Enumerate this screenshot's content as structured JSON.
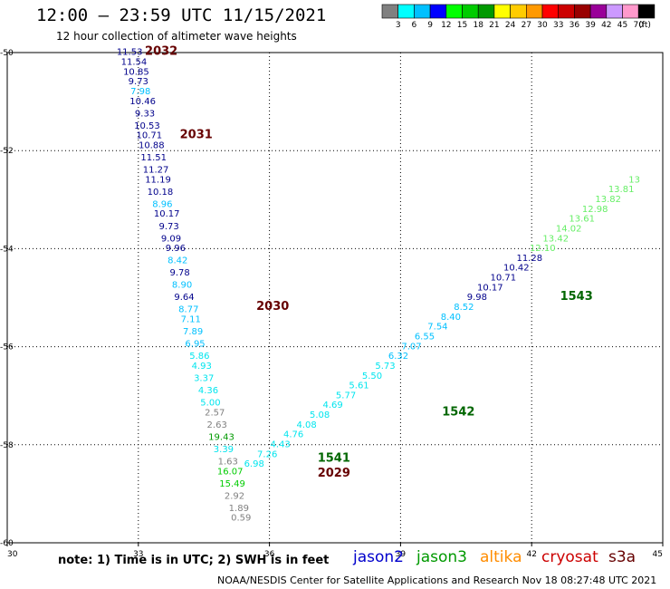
{
  "header": {
    "title": "12:00 – 23:59 UTC 11/15/2021",
    "subtitle": "12 hour collection of altimeter wave heights"
  },
  "footer": {
    "note": "note:  1) Time is in UTC; 2) SWH is in feet",
    "credit": "NOAA/NESDIS Center for Satellite Applications and Research     Nov 18 08:27:48 UTC 2021",
    "missions": [
      {
        "name": "jason2",
        "color": "#0000cc"
      },
      {
        "name": "jason3",
        "color": "#009900"
      },
      {
        "name": "altika",
        "color": "#ff8c00"
      },
      {
        "name": "cryosat",
        "color": "#cc0000"
      },
      {
        "name": "s3a",
        "color": "#660000"
      }
    ]
  },
  "legend": {
    "unit": "(ft)",
    "bins": [
      {
        "label": "3",
        "color": "#808080"
      },
      {
        "label": "6",
        "color": "#00ffff"
      },
      {
        "label": "9",
        "color": "#00c0ff"
      },
      {
        "label": "12",
        "color": "#0000ff"
      },
      {
        "label": "15",
        "color": "#00ff00"
      },
      {
        "label": "18",
        "color": "#00cc00"
      },
      {
        "label": "21",
        "color": "#009900"
      },
      {
        "label": "24",
        "color": "#ffff00"
      },
      {
        "label": "27",
        "color": "#ffcc00"
      },
      {
        "label": "30",
        "color": "#ff9900"
      },
      {
        "label": "33",
        "color": "#ff0000"
      },
      {
        "label": "36",
        "color": "#cc0000"
      },
      {
        "label": "39",
        "color": "#990000"
      },
      {
        "label": "42",
        "color": "#990099"
      },
      {
        "label": "45",
        "color": "#cc99ff"
      },
      {
        "label": "70",
        "color": "#ff99cc"
      },
      {
        "label": "",
        "color": "#000000"
      }
    ]
  },
  "chart_data": {
    "type": "scatter",
    "xlim": [
      30,
      45
    ],
    "ylim": [
      -60,
      -50
    ],
    "x_ticks": [
      "30",
      "33",
      "36",
      "39",
      "42",
      "45"
    ],
    "y_ticks": [
      "-50",
      "-52",
      "-54",
      "-56",
      "-58",
      "-60"
    ],
    "grid": true,
    "track_labels": [
      {
        "text": "2032",
        "x": 33.15,
        "y": -50.05,
        "color": "#660000"
      },
      {
        "text": "2031",
        "x": 33.95,
        "y": -51.75,
        "color": "#660000"
      },
      {
        "text": "2030",
        "x": 35.7,
        "y": -55.25,
        "color": "#660000"
      },
      {
        "text": "2029",
        "x": 37.1,
        "y": -58.65,
        "color": "#660000"
      },
      {
        "text": "1541",
        "x": 37.1,
        "y": -58.35,
        "color": "#006600"
      },
      {
        "text": "1542",
        "x": 39.95,
        "y": -57.4,
        "color": "#006600"
      },
      {
        "text": "1543",
        "x": 42.65,
        "y": -55.05,
        "color": "#006600"
      }
    ],
    "points": [
      {
        "x": 32.8,
        "y": -50.05,
        "v": "11.53",
        "color": "#00008b"
      },
      {
        "x": 32.9,
        "y": -50.25,
        "v": "11.54",
        "color": "#00008b"
      },
      {
        "x": 32.95,
        "y": -50.45,
        "v": "10.85",
        "color": "#00008b"
      },
      {
        "x": 33.0,
        "y": -50.65,
        "v": "9.73",
        "color": "#00008b"
      },
      {
        "x": 33.05,
        "y": -50.85,
        "v": "7.98",
        "color": "#00c0ff"
      },
      {
        "x": 33.1,
        "y": -51.05,
        "v": "10.46",
        "color": "#00008b"
      },
      {
        "x": 33.15,
        "y": -51.3,
        "v": "9.33",
        "color": "#00008b"
      },
      {
        "x": 33.2,
        "y": -51.55,
        "v": "10.53",
        "color": "#00008b"
      },
      {
        "x": 33.25,
        "y": -51.75,
        "v": "10.71",
        "color": "#00008b"
      },
      {
        "x": 33.3,
        "y": -51.95,
        "v": "10.88",
        "color": "#00008b"
      },
      {
        "x": 33.35,
        "y": -52.2,
        "v": "11.51",
        "color": "#00008b"
      },
      {
        "x": 33.4,
        "y": -52.45,
        "v": "11.27",
        "color": "#00008b"
      },
      {
        "x": 33.45,
        "y": -52.65,
        "v": "11.19",
        "color": "#00008b"
      },
      {
        "x": 33.5,
        "y": -52.9,
        "v": "10.18",
        "color": "#00008b"
      },
      {
        "x": 33.55,
        "y": -53.15,
        "v": "8.96",
        "color": "#00c0ff"
      },
      {
        "x": 33.65,
        "y": -53.35,
        "v": "10.17",
        "color": "#00008b"
      },
      {
        "x": 33.7,
        "y": -53.6,
        "v": "9.73",
        "color": "#00008b"
      },
      {
        "x": 33.75,
        "y": -53.85,
        "v": "9.09",
        "color": "#00008b"
      },
      {
        "x": 33.85,
        "y": -54.05,
        "v": "9.96",
        "color": "#00008b"
      },
      {
        "x": 33.9,
        "y": -54.3,
        "v": "8.42",
        "color": "#00c0ff"
      },
      {
        "x": 33.95,
        "y": -54.55,
        "v": "9.78",
        "color": "#00008b"
      },
      {
        "x": 34.0,
        "y": -54.8,
        "v": "8.90",
        "color": "#00c0ff"
      },
      {
        "x": 34.05,
        "y": -55.05,
        "v": "9.64",
        "color": "#00008b"
      },
      {
        "x": 34.15,
        "y": -55.3,
        "v": "8.77",
        "color": "#00c0ff"
      },
      {
        "x": 34.2,
        "y": -55.5,
        "v": "7.11",
        "color": "#00c0ff"
      },
      {
        "x": 34.25,
        "y": -55.75,
        "v": "7.89",
        "color": "#00c0ff"
      },
      {
        "x": 34.3,
        "y": -56.0,
        "v": "6.95",
        "color": "#00c0ff"
      },
      {
        "x": 34.4,
        "y": -56.25,
        "v": "5.86",
        "color": "#00e5ee"
      },
      {
        "x": 34.45,
        "y": -56.45,
        "v": "4.93",
        "color": "#00e5ee"
      },
      {
        "x": 34.5,
        "y": -56.7,
        "v": "3.37",
        "color": "#00e5ee"
      },
      {
        "x": 34.6,
        "y": -56.95,
        "v": "4.36",
        "color": "#00e5ee"
      },
      {
        "x": 34.65,
        "y": -57.2,
        "v": "5.00",
        "color": "#00e5ee"
      },
      {
        "x": 34.75,
        "y": -57.4,
        "v": "2.57",
        "color": "#808080"
      },
      {
        "x": 34.8,
        "y": -57.65,
        "v": "2.63",
        "color": "#808080"
      },
      {
        "x": 34.9,
        "y": -57.9,
        "v": "19.43",
        "color": "#009900"
      },
      {
        "x": 34.95,
        "y": -58.15,
        "v": "3.39",
        "color": "#00e5ee"
      },
      {
        "x": 35.05,
        "y": -58.4,
        "v": "1.63",
        "color": "#808080"
      },
      {
        "x": 35.1,
        "y": -58.6,
        "v": "16.07",
        "color": "#00cc00"
      },
      {
        "x": 35.15,
        "y": -58.85,
        "v": "15.49",
        "color": "#00cc00"
      },
      {
        "x": 35.2,
        "y": -59.1,
        "v": "2.92",
        "color": "#808080"
      },
      {
        "x": 35.3,
        "y": -59.35,
        "v": "1.89",
        "color": "#808080"
      },
      {
        "x": 35.35,
        "y": -59.55,
        "v": "0.59",
        "color": "#808080"
      },
      {
        "x": 35.65,
        "y": -58.45,
        "v": "6.98",
        "color": "#00e5ee"
      },
      {
        "x": 35.95,
        "y": -58.25,
        "v": "7.26",
        "color": "#00e5ee"
      },
      {
        "x": 36.25,
        "y": -58.05,
        "v": "4.43",
        "color": "#00e5ee"
      },
      {
        "x": 36.55,
        "y": -57.85,
        "v": "4.76",
        "color": "#00e5ee"
      },
      {
        "x": 36.85,
        "y": -57.65,
        "v": "4.08",
        "color": "#00e5ee"
      },
      {
        "x": 37.15,
        "y": -57.45,
        "v": "5.08",
        "color": "#00e5ee"
      },
      {
        "x": 37.45,
        "y": -57.25,
        "v": "4.69",
        "color": "#00e5ee"
      },
      {
        "x": 37.75,
        "y": -57.05,
        "v": "5.77",
        "color": "#00e5ee"
      },
      {
        "x": 38.05,
        "y": -56.85,
        "v": "5.61",
        "color": "#00e5ee"
      },
      {
        "x": 38.35,
        "y": -56.65,
        "v": "5.50",
        "color": "#00e5ee"
      },
      {
        "x": 38.65,
        "y": -56.45,
        "v": "5.73",
        "color": "#00e5ee"
      },
      {
        "x": 38.95,
        "y": -56.25,
        "v": "6.32",
        "color": "#00c0ff"
      },
      {
        "x": 39.25,
        "y": -56.05,
        "v": "7.07",
        "color": "#00c0ff"
      },
      {
        "x": 39.55,
        "y": -55.85,
        "v": "6.55",
        "color": "#00c0ff"
      },
      {
        "x": 39.85,
        "y": -55.65,
        "v": "7.54",
        "color": "#00c0ff"
      },
      {
        "x": 40.15,
        "y": -55.45,
        "v": "8.40",
        "color": "#00c0ff"
      },
      {
        "x": 40.45,
        "y": -55.25,
        "v": "8.52",
        "color": "#00c0ff"
      },
      {
        "x": 40.75,
        "y": -55.05,
        "v": "9.98",
        "color": "#00008b"
      },
      {
        "x": 41.05,
        "y": -54.85,
        "v": "10.17",
        "color": "#00008b"
      },
      {
        "x": 41.35,
        "y": -54.65,
        "v": "10.71",
        "color": "#00008b"
      },
      {
        "x": 41.65,
        "y": -54.45,
        "v": "10.42",
        "color": "#00008b"
      },
      {
        "x": 41.95,
        "y": -54.25,
        "v": "11.28",
        "color": "#00008b"
      },
      {
        "x": 42.25,
        "y": -54.05,
        "v": "12.10",
        "color": "#66ee66"
      },
      {
        "x": 42.55,
        "y": -53.85,
        "v": "13.42",
        "color": "#66ee66"
      },
      {
        "x": 42.85,
        "y": -53.65,
        "v": "14.02",
        "color": "#66ee66"
      },
      {
        "x": 43.15,
        "y": -53.45,
        "v": "13.61",
        "color": "#66ee66"
      },
      {
        "x": 43.45,
        "y": -53.25,
        "v": "12.98",
        "color": "#66ee66"
      },
      {
        "x": 43.75,
        "y": -53.05,
        "v": "13.82",
        "color": "#66ee66"
      },
      {
        "x": 44.05,
        "y": -52.85,
        "v": "13.81",
        "color": "#66ee66"
      },
      {
        "x": 44.35,
        "y": -52.65,
        "v": "13",
        "color": "#66ee66"
      }
    ]
  }
}
